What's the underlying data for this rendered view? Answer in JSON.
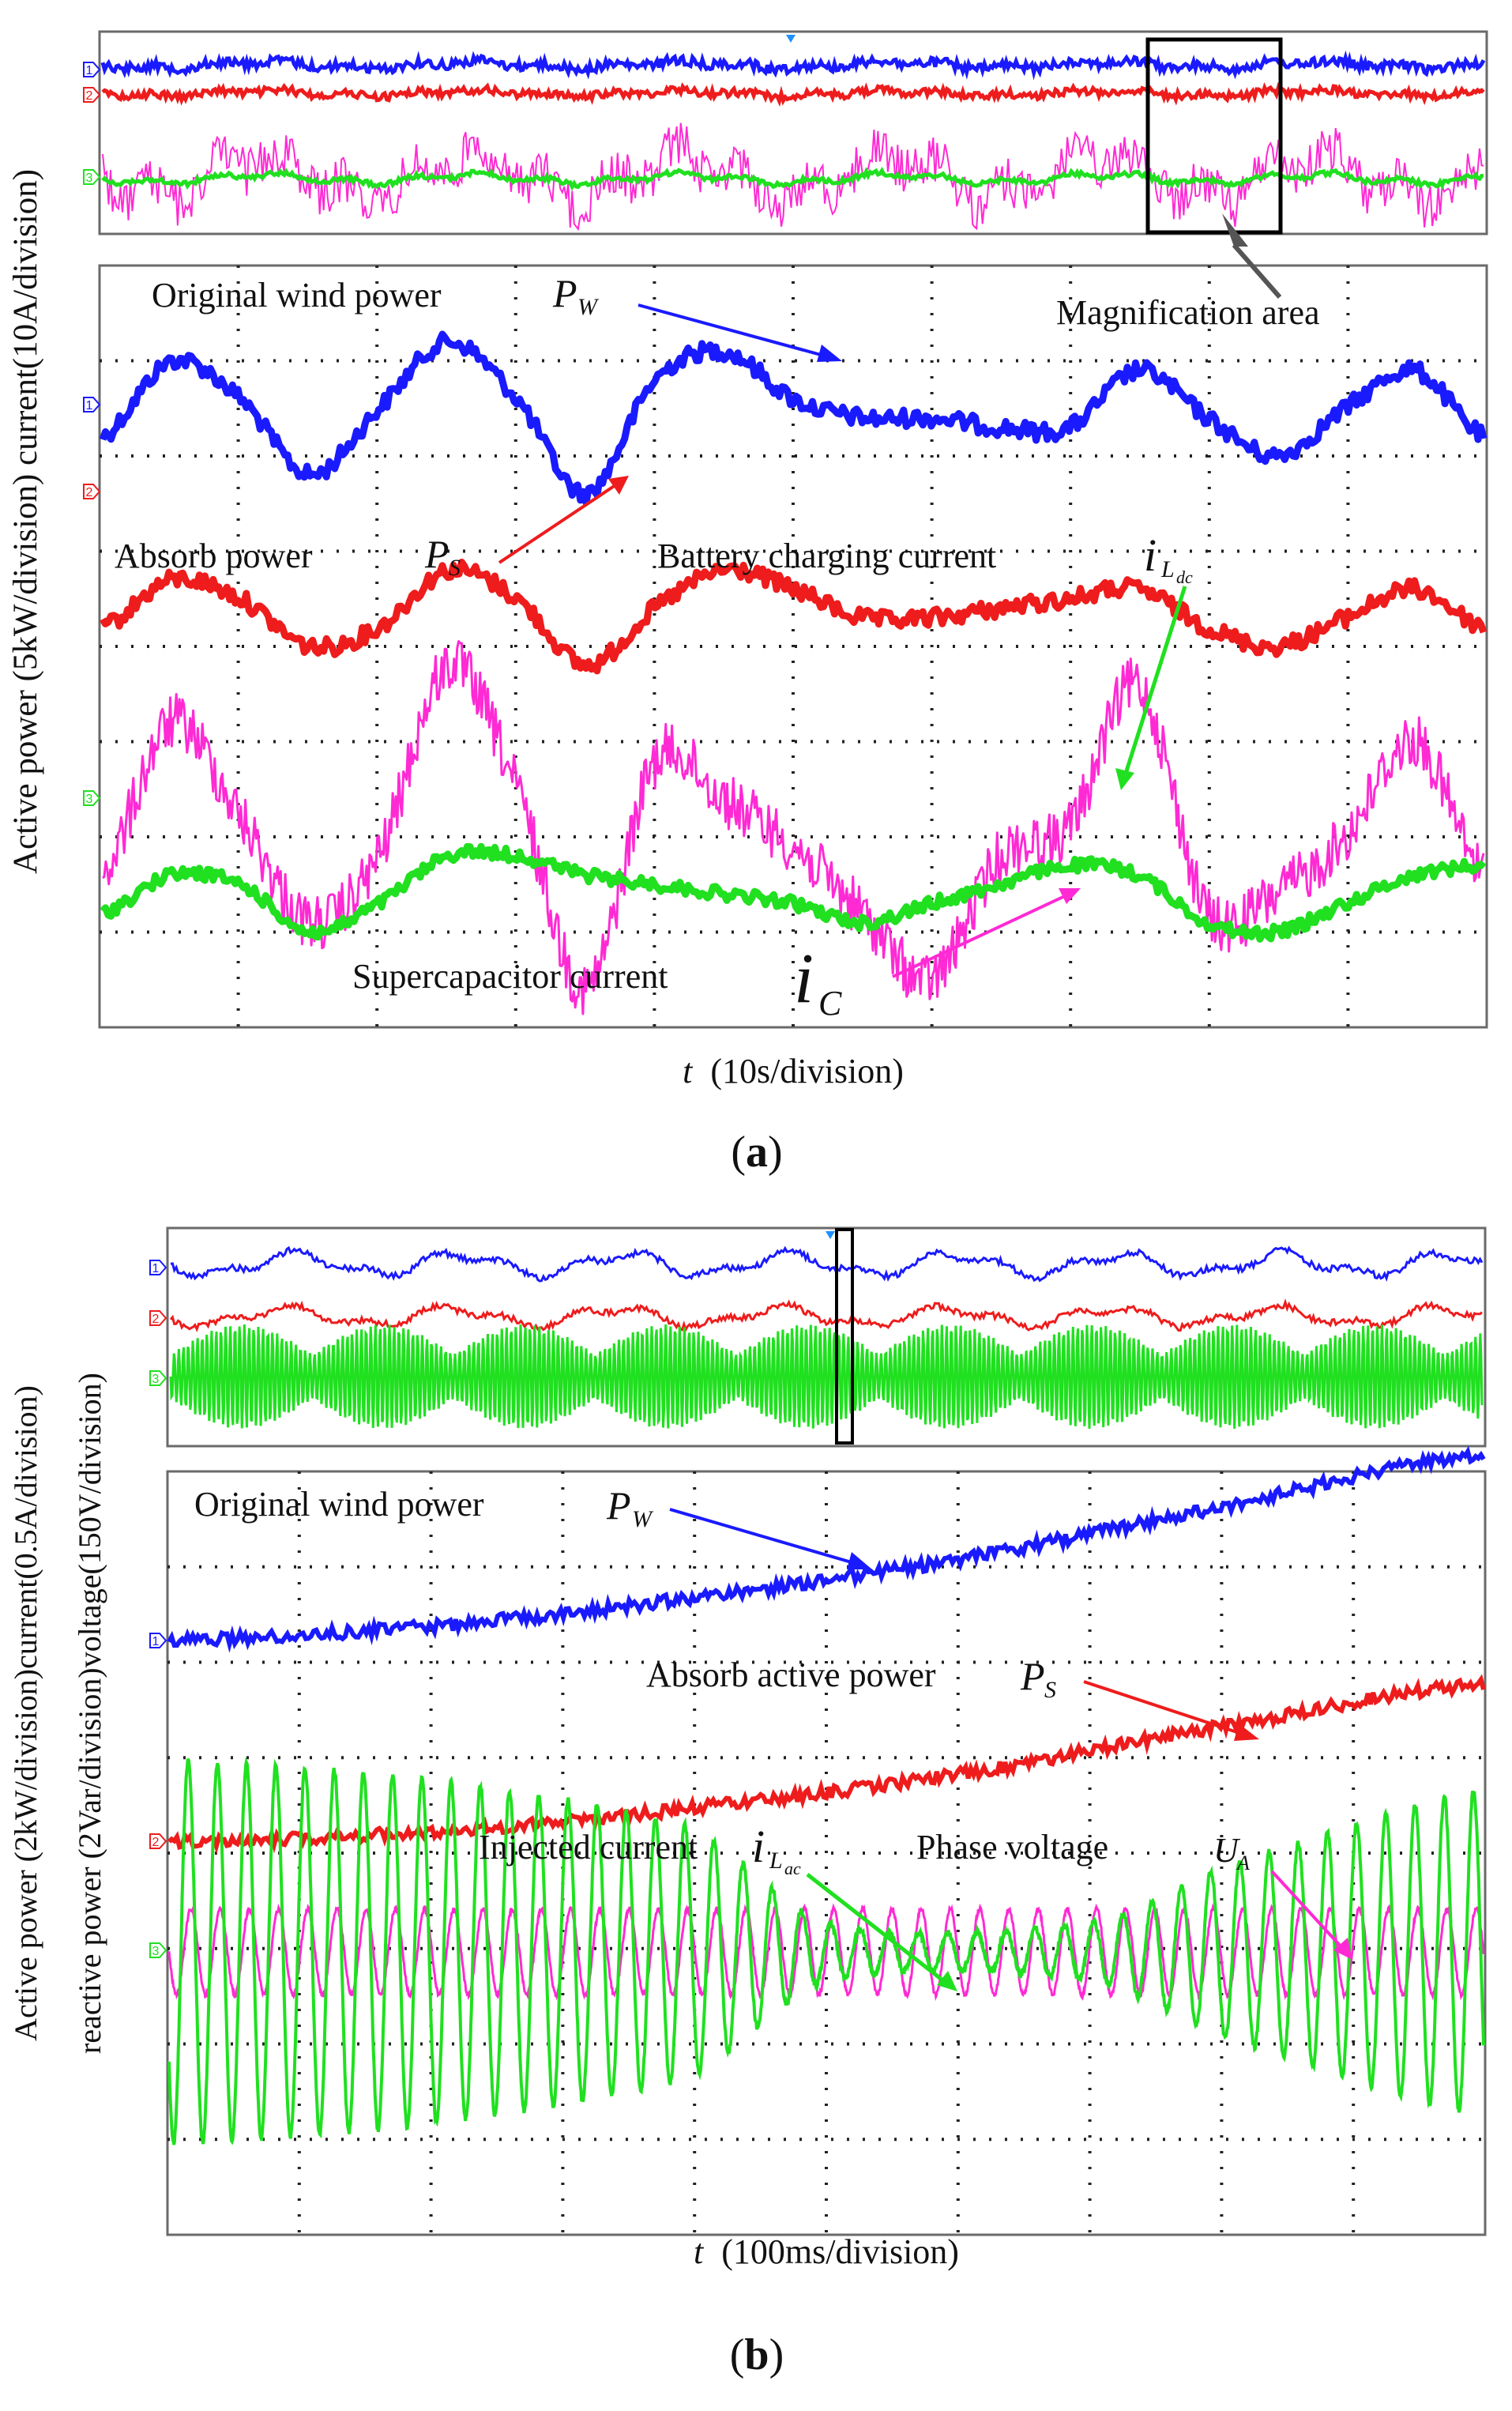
{
  "colors": {
    "blue": "#1a1aff",
    "red": "#ee1c1c",
    "magenta": "#ff2ad4",
    "green": "#20e020",
    "frame": "#6a6a6a",
    "grid": "#222222",
    "box": "#000000",
    "bg": "#ffffff"
  },
  "chart_data": [
    {
      "id": "a",
      "type": "line",
      "caption": "(a)",
      "caption_letter": "a",
      "ylabel": "Active power (5kW/division) current(10A/division)",
      "ylabel_lines": [
        "Active power (5kW/division) current(10A/division)"
      ],
      "xlabel_var": "t",
      "xlabel_rest": "(10s/division)",
      "channel_markers": [
        "1",
        "2",
        "3"
      ],
      "annotations": {
        "pw_text": "Original wind power",
        "pw_var": "P",
        "pw_sub": "W",
        "ps_text": "Absorb power",
        "ps_var": "P",
        "ps_sub": "S",
        "ilac_text": "Battery charging  current",
        "ilac_var": "i",
        "ilac_sub": "L",
        "ilac_subsub": "dc",
        "ic_text": "Supercapacitor current",
        "ic_var": "i",
        "ic_sub": "C",
        "mag_text": "Magnification area"
      },
      "series": [
        {
          "name": "Original wind power P_W",
          "color": "blue",
          "x": [
            0,
            1,
            2,
            3,
            4,
            5,
            6,
            7,
            8,
            9,
            10,
            11,
            12,
            13,
            14,
            15,
            16,
            17,
            18,
            19,
            20
          ],
          "y": [
            2.2,
            3.0,
            2.6,
            1.8,
            2.5,
            3.2,
            2.6,
            1.6,
            2.8,
            3.1,
            2.6,
            2.4,
            2.4,
            2.3,
            2.3,
            2.9,
            2.4,
            2.0,
            2.5,
            2.9,
            2.2
          ]
        },
        {
          "name": "Absorb power P_S",
          "color": "red",
          "x": [
            0,
            1,
            2,
            3,
            4,
            5,
            6,
            7,
            8,
            9,
            10,
            11,
            12,
            13,
            14,
            15,
            16,
            17,
            18,
            19,
            20
          ],
          "y": [
            0.2,
            0.7,
            0.5,
            0.0,
            0.2,
            0.8,
            0.5,
            -0.2,
            0.4,
            0.8,
            0.6,
            0.3,
            0.3,
            0.4,
            0.5,
            0.6,
            0.2,
            0.0,
            0.3,
            0.6,
            0.2
          ]
        },
        {
          "name": "Supercapacitor current i_C",
          "color": "magenta",
          "x": [
            0,
            1,
            2,
            3,
            4,
            5,
            6,
            7,
            8,
            9,
            10,
            11,
            12,
            13,
            14,
            15,
            16,
            17,
            18,
            19,
            20
          ],
          "y": [
            -2.4,
            -0.8,
            -1.8,
            -2.9,
            -2.2,
            -0.2,
            -1.5,
            -3.6,
            -1.2,
            -1.6,
            -2.1,
            -2.8,
            -3.5,
            -2.2,
            -1.9,
            -0.4,
            -2.8,
            -2.6,
            -2.0,
            -1.0,
            -2.4
          ]
        },
        {
          "name": "Battery charging current i_Ldc",
          "color": "green",
          "x": [
            0,
            1,
            2,
            3,
            4,
            5,
            6,
            7,
            8,
            9,
            10,
            11,
            12,
            13,
            14,
            15,
            16,
            17,
            18,
            19,
            20
          ],
          "y": [
            -2.8,
            -2.4,
            -2.5,
            -3.0,
            -2.7,
            -2.2,
            -2.2,
            -2.4,
            -2.5,
            -2.6,
            -2.7,
            -2.9,
            -2.7,
            -2.5,
            -2.3,
            -2.4,
            -2.9,
            -3.0,
            -2.7,
            -2.4,
            -2.3
          ]
        }
      ]
    },
    {
      "id": "b",
      "type": "line",
      "caption": "(b)",
      "caption_letter": "b",
      "ylabel": "Active power (2kW/division)current(0.5A/division) reactive power (2Var/division)voltage(150V/division)",
      "ylabel_lines": [
        "Active power (2kW/division)current(0.5A/division)",
        "reactive power (2Var/division)voltage(150V/division)"
      ],
      "xlabel_var": "t",
      "xlabel_rest": "(100ms/division)",
      "channel_markers": [
        "1",
        "2",
        "3"
      ],
      "annotations": {
        "pw_text": "Original wind power",
        "pw_var": "P",
        "pw_sub": "W",
        "ps_text": "Absorb active power",
        "ps_var": "P",
        "ps_sub": "S",
        "ilac_text": "Injected current",
        "ilac_var": "i",
        "ilac_sub": "L",
        "ilac_subsub": "ac",
        "ua_text": "Phase voltage",
        "ua_var": "U",
        "ua_sub": "A"
      },
      "series": [
        {
          "name": "Original wind power P_W",
          "color": "blue",
          "x": [
            0,
            2,
            4,
            6,
            8,
            10
          ],
          "y": [
            0.0,
            0.15,
            0.45,
            0.85,
            1.4,
            1.95
          ]
        },
        {
          "name": "Absorb active power P_S",
          "color": "red",
          "x": [
            0,
            2,
            4,
            6,
            8,
            10
          ],
          "y": [
            0.0,
            0.1,
            0.35,
            0.7,
            1.2,
            1.65
          ]
        },
        {
          "name": "Injected current i_Lac (amplitude)",
          "color": "green",
          "x": [
            0,
            2,
            4,
            5,
            7,
            8,
            10
          ],
          "y": [
            2.0,
            1.8,
            1.3,
            0.3,
            0.3,
            0.9,
            1.7
          ]
        },
        {
          "name": "Phase voltage U_A (amplitude)",
          "color": "magenta",
          "x": [
            0,
            10
          ],
          "y": [
            0.45,
            0.45
          ]
        }
      ]
    }
  ]
}
